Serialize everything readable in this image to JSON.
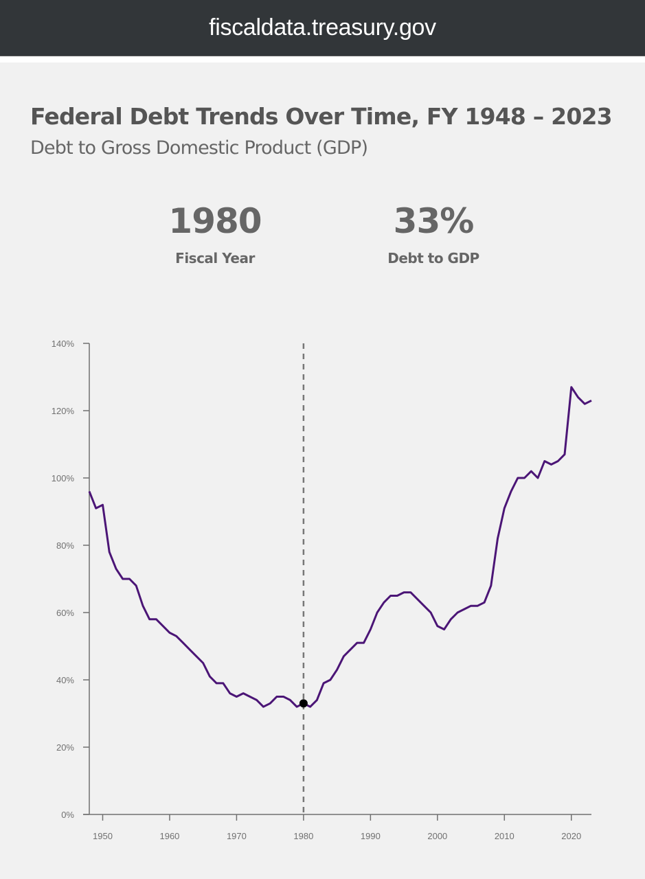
{
  "browser": {
    "url": "fiscaldata.treasury.gov"
  },
  "header": {
    "title": "Federal Debt Trends Over Time, FY 1948 – 2023",
    "subtitle": "Debt to Gross Domestic Product (GDP)"
  },
  "stats": {
    "fiscal_year": {
      "value": "1980",
      "label": "Fiscal Year"
    },
    "debt_to_gdp": {
      "value": "33%",
      "label": "Debt to GDP"
    }
  },
  "colors": {
    "line": "#4b1576",
    "axis": "#707070",
    "marker": "#000000",
    "crosshair": "#777777"
  },
  "chart_data": {
    "type": "line",
    "title": "Federal Debt Trends Over Time, FY 1948 – 2023",
    "subtitle": "Debt to Gross Domestic Product (GDP)",
    "xlabel": "Fiscal Year",
    "ylabel": "Debt to GDP (%)",
    "xlim": [
      1948,
      2023
    ],
    "ylim": [
      0,
      140
    ],
    "grid": false,
    "legend": "none",
    "x_ticks": [
      1950,
      1960,
      1970,
      1980,
      1990,
      2000,
      2010,
      2020
    ],
    "y_ticks": [
      0,
      20,
      40,
      60,
      80,
      100,
      120,
      140
    ],
    "y_tick_labels": [
      "0%",
      "20%",
      "40%",
      "60%",
      "80%",
      "100%",
      "120%",
      "140%"
    ],
    "highlight": {
      "x": 1980,
      "y": 33
    },
    "series": [
      {
        "name": "Debt to GDP",
        "x": [
          1948,
          1949,
          1950,
          1951,
          1952,
          1953,
          1954,
          1955,
          1956,
          1957,
          1958,
          1959,
          1960,
          1961,
          1962,
          1963,
          1964,
          1965,
          1966,
          1967,
          1968,
          1969,
          1970,
          1971,
          1972,
          1973,
          1974,
          1975,
          1976,
          1977,
          1978,
          1979,
          1980,
          1981,
          1982,
          1983,
          1984,
          1985,
          1986,
          1987,
          1988,
          1989,
          1990,
          1991,
          1992,
          1993,
          1994,
          1995,
          1996,
          1997,
          1998,
          1999,
          2000,
          2001,
          2002,
          2003,
          2004,
          2005,
          2006,
          2007,
          2008,
          2009,
          2010,
          2011,
          2012,
          2013,
          2014,
          2015,
          2016,
          2017,
          2018,
          2019,
          2020,
          2021,
          2022,
          2023
        ],
        "values": [
          96,
          91,
          92,
          78,
          73,
          70,
          70,
          68,
          62,
          58,
          58,
          56,
          54,
          53,
          51,
          49,
          47,
          45,
          41,
          39,
          39,
          36,
          35,
          36,
          35,
          34,
          32,
          33,
          35,
          35,
          34,
          32,
          33,
          32,
          34,
          39,
          40,
          43,
          47,
          49,
          51,
          51,
          55,
          60,
          63,
          65,
          65,
          66,
          66,
          64,
          62,
          60,
          56,
          55,
          58,
          60,
          61,
          62,
          62,
          63,
          68,
          82,
          91,
          96,
          100,
          100,
          102,
          100,
          105,
          104,
          105,
          107,
          127,
          124,
          122,
          123
        ]
      }
    ]
  }
}
